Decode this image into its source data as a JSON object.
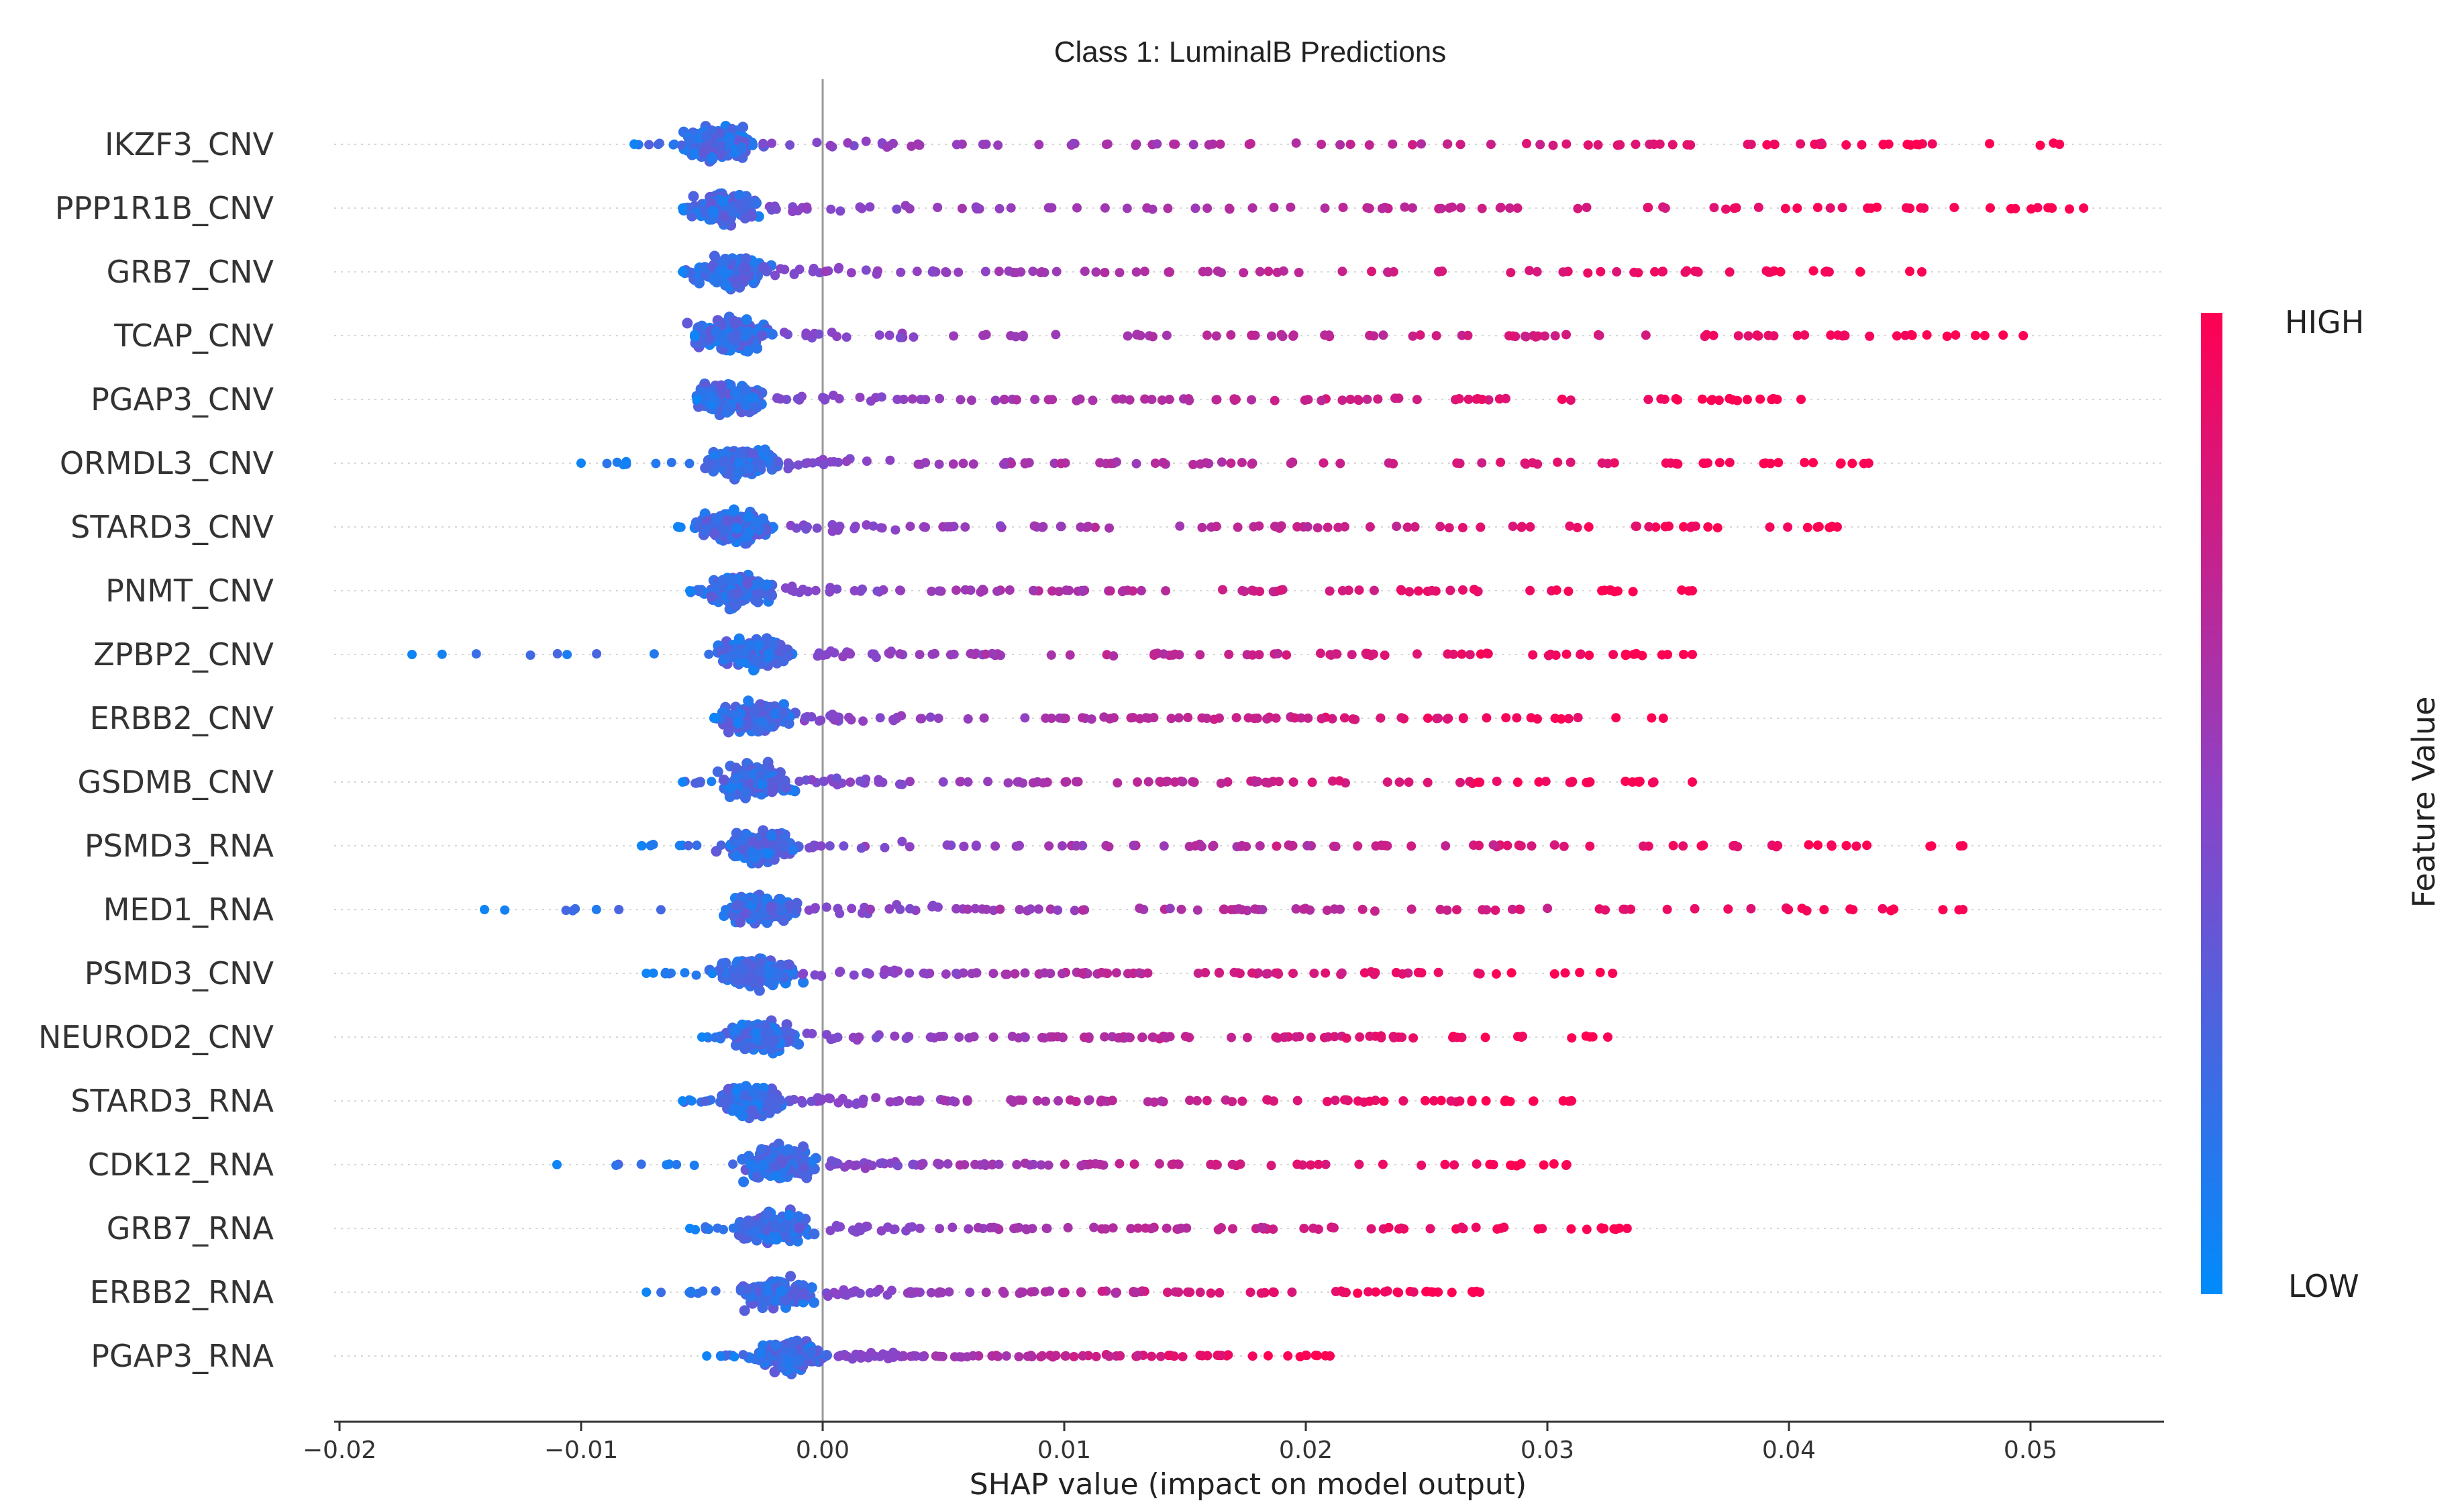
{
  "chart_data": {
    "type": "scatter",
    "subtype": "shap-beeswarm",
    "title": "Class 1: LuminalB Predictions",
    "xlabel": "SHAP value (impact on model output)",
    "ylabel": "",
    "xlim": [
      -0.02,
      0.055
    ],
    "x_ticks": [
      -0.02,
      -0.01,
      0.0,
      0.01,
      0.02,
      0.03,
      0.04,
      0.05
    ],
    "x_tick_labels": [
      "−0.02",
      "−0.01",
      "0.00",
      "0.01",
      "0.02",
      "0.03",
      "0.04",
      "0.05"
    ],
    "zero_line": 0.0,
    "colorbar": {
      "label": "Feature Value",
      "high_label": "HIGH",
      "low_label": "LOW",
      "high_color": "#ff0052",
      "low_color": "#008bfb"
    },
    "features": [
      {
        "name": "IKZF3_CNV",
        "cluster": -0.0043,
        "min": -0.0078,
        "max": 0.0512
      },
      {
        "name": "PPP1R1B_CNV",
        "cluster": -0.004,
        "min": -0.0058,
        "max": 0.0522
      },
      {
        "name": "GRB7_CNV",
        "cluster": -0.0038,
        "min": -0.0058,
        "max": 0.0455
      },
      {
        "name": "TCAP_CNV",
        "cluster": -0.0038,
        "min": -0.0053,
        "max": 0.0497
      },
      {
        "name": "PGAP3_CNV",
        "cluster": -0.0037,
        "min": -0.0052,
        "max": 0.0405
      },
      {
        "name": "ORMDL3_CNV",
        "cluster": -0.0033,
        "min": -0.01,
        "max": 0.0433
      },
      {
        "name": "STARD3_CNV",
        "cluster": -0.0036,
        "min": -0.006,
        "max": 0.042
      },
      {
        "name": "PNMT_CNV",
        "cluster": -0.0035,
        "min": -0.0055,
        "max": 0.036
      },
      {
        "name": "ZPBP2_CNV",
        "cluster": -0.0028,
        "min": -0.017,
        "max": 0.036
      },
      {
        "name": "ERBB2_CNV",
        "cluster": -0.0027,
        "min": -0.0045,
        "max": 0.0348
      },
      {
        "name": "GSDMB_CNV",
        "cluster": -0.0028,
        "min": -0.0058,
        "max": 0.036
      },
      {
        "name": "PSMD3_RNA",
        "cluster": -0.0025,
        "min": -0.0075,
        "max": 0.0472
      },
      {
        "name": "MED1_RNA",
        "cluster": -0.0025,
        "min": -0.014,
        "max": 0.0472
      },
      {
        "name": "PSMD3_CNV",
        "cluster": -0.0027,
        "min": -0.0073,
        "max": 0.0327
      },
      {
        "name": "NEUROD2_CNV",
        "cluster": -0.0025,
        "min": -0.005,
        "max": 0.0325
      },
      {
        "name": "STARD3_RNA",
        "cluster": -0.003,
        "min": -0.0058,
        "max": 0.031
      },
      {
        "name": "CDK12_RNA",
        "cluster": -0.0018,
        "min": -0.011,
        "max": 0.0308
      },
      {
        "name": "GRB7_RNA",
        "cluster": -0.002,
        "min": -0.0055,
        "max": 0.0333
      },
      {
        "name": "ERBB2_RNA",
        "cluster": -0.0018,
        "min": -0.0073,
        "max": 0.0272
      },
      {
        "name": "PGAP3_RNA",
        "cluster": -0.0013,
        "min": -0.0048,
        "max": 0.021
      }
    ]
  }
}
